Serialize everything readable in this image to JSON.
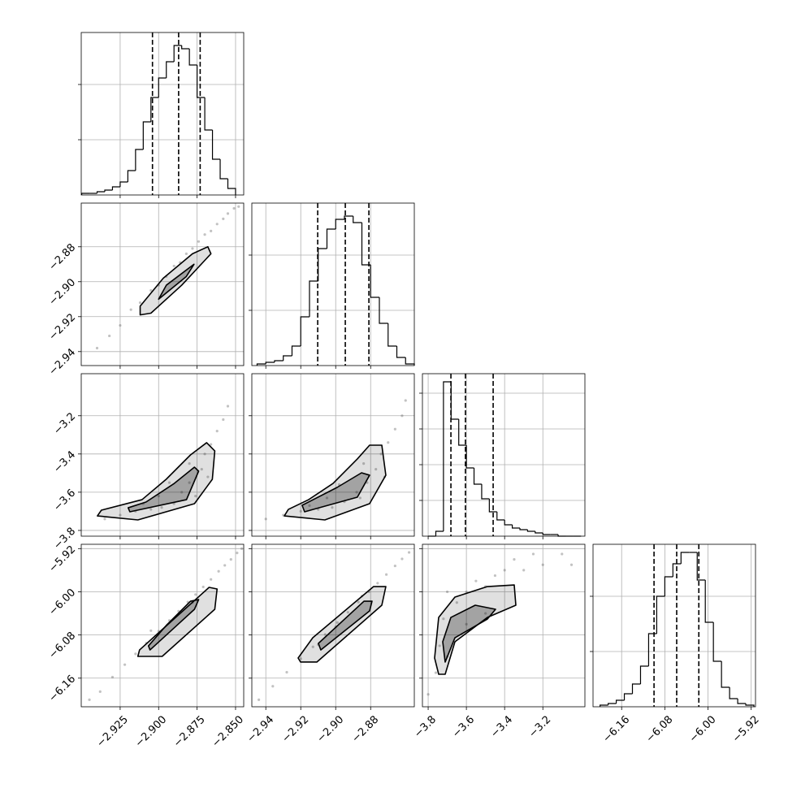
{
  "chart_data": [
    {
      "type": "histogram",
      "color": "#000000",
      "grid": true,
      "bins": [
        -2.95,
        -2.945,
        -2.94,
        -2.935,
        -2.93,
        -2.925,
        -2.92,
        -2.915,
        -2.91,
        -2.905,
        -2.9,
        -2.895,
        -2.89,
        -2.885,
        -2.88,
        -2.875,
        -2.87,
        -2.865,
        -2.86,
        -2.855,
        -2.85
      ],
      "counts": [
        1,
        1,
        2,
        3,
        5,
        8,
        15,
        28,
        45,
        60,
        72,
        82,
        92,
        90,
        80,
        60,
        40,
        22,
        10,
        4
      ],
      "quantiles": [
        -2.904,
        -2.887,
        -2.873
      ],
      "xlim": [
        -2.9503,
        -2.8447
      ],
      "xticks": [
        -2.925,
        -2.9,
        -2.875,
        -2.85
      ],
      "ylim": [
        0,
        100
      ],
      "yticks": [
        34,
        68
      ]
    },
    {
      "type": "scatter",
      "color": "#000000",
      "grid": true,
      "x": [
        -2.94,
        -2.932,
        -2.925,
        -2.918,
        -2.912,
        -2.905,
        -2.9,
        -2.895,
        -2.89,
        -2.886,
        -2.882,
        -2.878,
        -2.874,
        -2.87,
        -2.866,
        -2.862,
        -2.858,
        -2.855,
        -2.851,
        -2.848
      ],
      "y": [
        -2.938,
        -2.931,
        -2.925,
        -2.916,
        -2.912,
        -2.905,
        -2.902,
        -2.897,
        -2.891,
        -2.889,
        -2.884,
        -2.881,
        -2.877,
        -2.873,
        -2.871,
        -2.867,
        -2.864,
        -2.861,
        -2.858,
        -2.857
      ],
      "contours": [
        {
          "x": [
            -2.912,
            -2.905,
            -2.885,
            -2.866,
            -2.868,
            -2.878,
            -2.897,
            -2.912
          ],
          "y": [
            -2.919,
            -2.918,
            -2.902,
            -2.884,
            -2.88,
            -2.884,
            -2.898,
            -2.914
          ]
        },
        {
          "x": [
            -2.9,
            -2.882,
            -2.877,
            -2.895
          ],
          "y": [
            -2.91,
            -2.897,
            -2.89,
            -2.902
          ]
        }
      ],
      "xlim": [
        -2.9503,
        -2.8447
      ],
      "xticks": [
        -2.925,
        -2.9,
        -2.875,
        -2.85
      ],
      "ylim": [
        -2.948,
        -2.855
      ],
      "yticks": [
        {
          "value": -2.94,
          "label": "−2.94"
        },
        {
          "value": -2.92,
          "label": "−2.92"
        },
        {
          "value": -2.9,
          "label": "−2.90"
        },
        {
          "value": -2.88,
          "label": "−2.88"
        }
      ]
    },
    {
      "type": "histogram",
      "color": "#000000",
      "grid": true,
      "bins": [
        -2.945,
        -2.94,
        -2.935,
        -2.93,
        -2.925,
        -2.92,
        -2.915,
        -2.91,
        -2.905,
        -2.9,
        -2.895,
        -2.89,
        -2.885,
        -2.88,
        -2.875,
        -2.87,
        -2.865,
        -2.86,
        -2.855
      ],
      "counts": [
        1,
        2,
        3,
        6,
        12,
        30,
        52,
        72,
        84,
        90,
        92,
        88,
        62,
        42,
        26,
        12,
        5,
        1
      ],
      "quantiles": [
        -2.9103,
        -2.8945,
        -2.881
      ],
      "xlim": [
        -2.948,
        -2.855
      ],
      "xticks": [
        -2.94,
        -2.92,
        -2.9,
        -2.88
      ],
      "ylim": [
        0,
        100
      ],
      "yticks": [
        34,
        68
      ]
    },
    {
      "type": "scatter",
      "color": "#000000",
      "grid": true,
      "x": [
        -2.935,
        -2.925,
        -2.915,
        -2.905,
        -2.898,
        -2.89,
        -2.885,
        -2.88,
        -2.876,
        -2.872,
        -2.87,
        -2.866,
        -2.862,
        -2.858,
        -2.855,
        -2.88,
        -2.893,
        -2.868,
        -2.9,
        -2.91
      ],
      "y": [
        -3.74,
        -3.72,
        -3.7,
        -3.69,
        -3.68,
        -3.66,
        -3.6,
        -3.55,
        -3.62,
        -3.48,
        -3.4,
        -3.35,
        -3.28,
        -3.22,
        -3.15,
        -3.45,
        -3.55,
        -3.52,
        -3.62,
        -3.66
      ],
      "contours": [
        {
          "x": [
            -2.9398,
            -2.9135,
            -2.8767,
            -2.8651,
            -2.8635,
            -2.8688,
            -2.8793,
            -2.8951,
            -2.9108,
            -2.9372
          ],
          "y": [
            -3.724,
            -3.745,
            -3.66,
            -3.5325,
            -3.384,
            -3.341,
            -3.405,
            -3.5325,
            -3.639,
            -3.694
          ]
        },
        {
          "x": [
            -2.9187,
            -2.8819,
            -2.874,
            -2.8767,
            -2.8898,
            -2.9082,
            -2.9198
          ],
          "y": [
            -3.7025,
            -3.639,
            -3.49,
            -3.469,
            -3.554,
            -3.6515,
            -3.6815
          ]
        }
      ],
      "xlim": [
        -2.9503,
        -2.8447
      ],
      "xticks": [
        -2.925,
        -2.9,
        -2.875,
        -2.85
      ],
      "ylim": [
        -3.83,
        -2.98
      ],
      "yticks": [
        {
          "value": -3.8,
          "label": "−3.8"
        },
        {
          "value": -3.6,
          "label": "−3.6"
        },
        {
          "value": -3.4,
          "label": "−3.4"
        },
        {
          "value": -3.2,
          "label": "−3.2"
        }
      ]
    },
    {
      "type": "scatter",
      "color": "#000000",
      "grid": true,
      "x": [
        -2.94,
        -2.93,
        -2.92,
        -2.91,
        -2.902,
        -2.895,
        -2.888,
        -2.882,
        -2.886,
        -2.877,
        -2.874,
        -2.87,
        -2.866,
        -2.862,
        -2.86,
        -2.884,
        -2.898,
        -2.872,
        -2.905,
        -2.915
      ],
      "y": [
        -3.74,
        -3.72,
        -3.7,
        -3.69,
        -3.68,
        -3.65,
        -3.6,
        -3.55,
        -3.63,
        -3.48,
        -3.4,
        -3.34,
        -3.27,
        -3.2,
        -3.12,
        -3.45,
        -3.56,
        -3.52,
        -3.63,
        -3.67
      ],
      "contours": [
        {
          "x": [
            -2.9294,
            -2.9062,
            -2.8806,
            -2.8713,
            -2.8736,
            -2.8806,
            -2.8876,
            -2.9015,
            -2.9155,
            -2.9271
          ],
          "y": [
            -3.724,
            -3.745,
            -3.66,
            -3.511,
            -3.354,
            -3.354,
            -3.426,
            -3.554,
            -3.639,
            -3.69
          ]
        },
        {
          "x": [
            -2.9178,
            -2.8876,
            -2.8806,
            -2.8852,
            -2.8992,
            -2.9192
          ],
          "y": [
            -3.7025,
            -3.626,
            -3.511,
            -3.4985,
            -3.575,
            -3.6685
          ]
        }
      ],
      "xlim": [
        -2.948,
        -2.855
      ],
      "xticks": [
        -2.94,
        -2.92,
        -2.9,
        -2.88
      ],
      "ylim": [
        -3.83,
        -2.98
      ],
      "yticks": [
        -3.8,
        -3.6,
        -3.4,
        -3.2
      ]
    },
    {
      "type": "histogram",
      "color": "#000000",
      "grid": true,
      "bins": [
        -3.8,
        -3.76,
        -3.72,
        -3.68,
        -3.64,
        -3.6,
        -3.56,
        -3.52,
        -3.48,
        -3.44,
        -3.4,
        -3.36,
        -3.32,
        -3.28,
        -3.24,
        -3.2,
        -3.16,
        -3.12,
        -3.08,
        -3.04,
        -3.0
      ],
      "counts": [
        0,
        3,
        95,
        72,
        56,
        42,
        32,
        23,
        15,
        10,
        7,
        5,
        4,
        3,
        2,
        1,
        1,
        0,
        0,
        0
      ],
      "quantiles": [
        -3.681,
        -3.605,
        -3.46
      ],
      "xlim": [
        -3.83,
        -2.98
      ],
      "xticks": [
        -3.8,
        -3.6,
        -3.4,
        -3.2
      ],
      "ylim": [
        0,
        100
      ],
      "yticks": [
        22,
        44,
        66,
        88
      ]
    },
    {
      "type": "scatter",
      "color": "#000000",
      "grid": true,
      "x": [
        -2.945,
        -2.938,
        -2.93,
        -2.922,
        -2.915,
        -2.908,
        -2.9,
        -2.893,
        -2.887,
        -2.881,
        -2.876,
        -2.871,
        -2.866,
        -2.861,
        -2.857,
        -2.853,
        -2.849,
        -2.846,
        -2.905,
        -2.878
      ],
      "y": [
        -6.2,
        -6.185,
        -6.158,
        -6.135,
        -6.115,
        -6.095,
        -6.073,
        -6.053,
        -6.036,
        -6.019,
        -6.005,
        -5.991,
        -5.977,
        -5.962,
        -5.951,
        -5.94,
        -5.928,
        -5.92,
        -6.072,
        -6.02
      ],
      "contours": [
        {
          "x": [
            -2.9135,
            -2.8977,
            -2.8635,
            -2.862,
            -2.8672,
            -2.8977,
            -2.9124
          ],
          "y": [
            -6.1197,
            -6.1197,
            -6.0324,
            -5.9948,
            -5.9918,
            -6.07,
            -6.1077
          ]
        },
        {
          "x": [
            -2.9056,
            -2.8767,
            -2.874,
            -2.8793,
            -2.8951,
            -2.9066
          ],
          "y": [
            -6.1077,
            -6.0324,
            -6.0144,
            -6.0174,
            -6.0625,
            -6.1002
          ]
        }
      ],
      "xlim": [
        -2.9503,
        -2.8447
      ],
      "xticks": [
        {
          "value": -2.925,
          "label": "−2.925"
        },
        {
          "value": -2.9,
          "label": "−2.900"
        },
        {
          "value": -2.875,
          "label": "−2.875"
        },
        {
          "value": -2.85,
          "label": "−2.850"
        }
      ],
      "ylim": [
        -6.213,
        -5.912
      ],
      "yticks": [
        {
          "value": -6.16,
          "label": "−6.16"
        },
        {
          "value": -6.08,
          "label": "−6.08"
        },
        {
          "value": -6.0,
          "label": "−6.00"
        },
        {
          "value": -5.92,
          "label": "−5.92"
        }
      ]
    },
    {
      "type": "scatter",
      "color": "#000000",
      "grid": true,
      "x": [
        -2.944,
        -2.936,
        -2.928,
        -2.92,
        -2.913,
        -2.906,
        -2.899,
        -2.893,
        -2.887,
        -2.881,
        -2.876,
        -2.871,
        -2.866,
        -2.862,
        -2.858,
        -2.91,
        -2.885,
        -2.9
      ],
      "y": [
        -6.2,
        -6.175,
        -6.149,
        -6.124,
        -6.102,
        -6.079,
        -6.057,
        -6.038,
        -6.019,
        -6.0,
        -5.984,
        -5.968,
        -5.952,
        -5.939,
        -5.927,
        -6.098,
        -6.008,
        -6.065
      ],
      "contours": [
        {
          "x": [
            -2.9201,
            -2.9108,
            -2.8736,
            -2.8713,
            -2.8783,
            -2.9131,
            -2.9215
          ],
          "y": [
            -6.1302,
            -6.1302,
            -6.0249,
            -5.9903,
            -5.9903,
            -6.0851,
            -6.1227
          ]
        },
        {
          "x": [
            -2.9085,
            -2.8806,
            -2.8792,
            -2.8838,
            -2.9099
          ],
          "y": [
            -6.1077,
            -6.0354,
            -6.0174,
            -6.0174,
            -6.0956
          ]
        }
      ],
      "xlim": [
        -2.948,
        -2.855
      ],
      "xticks": [
        {
          "value": -2.94,
          "label": "−2.94"
        },
        {
          "value": -2.92,
          "label": "−2.92"
        },
        {
          "value": -2.9,
          "label": "−2.90"
        },
        {
          "value": -2.88,
          "label": "−2.88"
        }
      ],
      "ylim": [
        -6.213,
        -5.912
      ],
      "yticks": [
        -6.16,
        -6.08,
        -6.0,
        -5.92
      ]
    },
    {
      "type": "scatter",
      "color": "#000000",
      "grid": true,
      "x": [
        -3.8,
        -3.76,
        -3.74,
        -3.72,
        -3.7,
        -3.65,
        -3.6,
        -3.55,
        -3.5,
        -3.45,
        -3.4,
        -3.35,
        -3.3,
        -3.25,
        -3.2,
        -3.1,
        -3.05,
        -3.7,
        -3.6,
        -3.5
      ],
      "y": [
        -6.19,
        -6.15,
        -6.1,
        -6.05,
        -6.0,
        -6.02,
        -6.0,
        -5.98,
        -6.04,
        -5.97,
        -5.96,
        -5.94,
        -5.96,
        -5.93,
        -5.95,
        -5.93,
        -5.95,
        -6.12,
        -6.06,
        -5.99
      ],
      "contours": [
        {
          "x": [
            -3.745,
            -3.711,
            -3.66,
            -3.49,
            -3.3413,
            -3.3498,
            -3.49,
            -3.66,
            -3.745,
            -3.7663
          ],
          "y": [
            -6.1528,
            -6.1528,
            -6.0926,
            -6.0475,
            -6.0249,
            -5.9873,
            -5.9903,
            -6.0098,
            -6.0475,
            -6.1227
          ]
        },
        {
          "x": [
            -3.711,
            -3.66,
            -3.49,
            -3.4475,
            -3.5538,
            -3.6813,
            -3.7238
          ],
          "y": [
            -6.1302,
            -6.0851,
            -6.0505,
            -6.0324,
            -6.0249,
            -6.0475,
            -6.0926
          ]
        }
      ],
      "xlim": [
        -3.83,
        -2.98
      ],
      "xticks": [
        {
          "value": -3.8,
          "label": "−3.8"
        },
        {
          "value": -3.6,
          "label": "−3.6"
        },
        {
          "value": -3.4,
          "label": "−3.4"
        },
        {
          "value": -3.2,
          "label": "−3.2"
        }
      ],
      "ylim": [
        -6.213,
        -5.912
      ],
      "yticks": [
        -6.16,
        -6.08,
        -6.0,
        -5.92
      ]
    },
    {
      "type": "histogram",
      "color": "#000000",
      "grid": true,
      "bins": [
        -6.2,
        -6.185,
        -6.17,
        -6.155,
        -6.14,
        -6.125,
        -6.11,
        -6.095,
        -6.08,
        -6.065,
        -6.05,
        -6.035,
        -6.02,
        -6.005,
        -5.99,
        -5.975,
        -5.96,
        -5.945,
        -5.93,
        -5.915
      ],
      "counts": [
        1,
        2,
        4,
        8,
        14,
        25,
        45,
        68,
        80,
        88,
        95,
        95,
        78,
        52,
        28,
        12,
        5,
        2,
        1
      ],
      "quantiles": [
        -6.1,
        -6.058,
        -6.017
      ],
      "xlim": [
        -6.213,
        -5.912
      ],
      "xticks": [
        {
          "value": -6.16,
          "label": "−6.16"
        },
        {
          "value": -6.08,
          "label": "−6.08"
        },
        {
          "value": -6.0,
          "label": "−6.00"
        },
        {
          "value": -5.92,
          "label": "−5.92"
        }
      ],
      "ylim": [
        0,
        100
      ],
      "yticks": [
        34,
        68
      ]
    }
  ]
}
